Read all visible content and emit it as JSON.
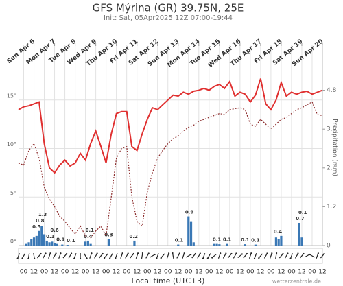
{
  "chart_data": {
    "type": "line",
    "title": "GFS Mýrina (GR) 39.75N, 25E",
    "subtitle": "Init: Sat, 05Apr2025 12Z 07:00-19:44",
    "x_label": "Local time (UTC+3)",
    "y2_label": "Precipitation (mm)",
    "source": "wetterzentrale.de",
    "xlim": [
      -6,
      348
    ],
    "ylim": [
      0,
      20
    ],
    "y2lim": [
      0,
      6
    ],
    "grid": true,
    "yticks": [
      {
        "value": 0,
        "label": "0°"
      },
      {
        "value": 5,
        "label": "5°"
      },
      {
        "value": 10,
        "label": "10°"
      },
      {
        "value": 15,
        "label": "15°"
      }
    ],
    "y2ticks": [
      0,
      1.2,
      2.4,
      3.6,
      4.8
    ],
    "xticks": [
      {
        "value": 0,
        "label": "00"
      },
      {
        "value": 12,
        "label": "12"
      },
      {
        "value": 24,
        "label": "00"
      },
      {
        "value": 36,
        "label": "12"
      },
      {
        "value": 48,
        "label": "00"
      },
      {
        "value": 60,
        "label": "12"
      },
      {
        "value": 72,
        "label": "00"
      },
      {
        "value": 84,
        "label": "12"
      },
      {
        "value": 96,
        "label": "00"
      },
      {
        "value": 108,
        "label": "12"
      },
      {
        "value": 120,
        "label": "00"
      },
      {
        "value": 132,
        "label": "12"
      },
      {
        "value": 144,
        "label": "00"
      },
      {
        "value": 156,
        "label": "12"
      },
      {
        "value": 168,
        "label": "00"
      },
      {
        "value": 180,
        "label": "12"
      },
      {
        "value": 192,
        "label": "00"
      },
      {
        "value": 204,
        "label": "12"
      },
      {
        "value": 216,
        "label": "00"
      },
      {
        "value": 228,
        "label": "12"
      },
      {
        "value": 240,
        "label": "00"
      },
      {
        "value": 252,
        "label": "12"
      },
      {
        "value": 264,
        "label": "00"
      },
      {
        "value": 276,
        "label": "12"
      },
      {
        "value": 288,
        "label": "00"
      },
      {
        "value": 300,
        "label": "12"
      },
      {
        "value": 312,
        "label": "00"
      },
      {
        "value": 324,
        "label": "12"
      },
      {
        "value": 336,
        "label": "00"
      },
      {
        "value": 348,
        "label": "12"
      }
    ],
    "top_ticks": [
      {
        "value": 12,
        "label": "Sun Apr 6"
      },
      {
        "value": 36,
        "label": "Mon Apr 7"
      },
      {
        "value": 60,
        "label": "Tue Apr 8"
      },
      {
        "value": 84,
        "label": "Wed Apr 9"
      },
      {
        "value": 108,
        "label": "Thu Apr 10"
      },
      {
        "value": 132,
        "label": "Fri Apr 11"
      },
      {
        "value": 156,
        "label": "Sat Apr 12"
      },
      {
        "value": 180,
        "label": "Sun Apr 13"
      },
      {
        "value": 204,
        "label": "Mon Apr 14"
      },
      {
        "value": 228,
        "label": "Tue Apr 15"
      },
      {
        "value": 252,
        "label": "Wed Apr 16"
      },
      {
        "value": 276,
        "label": "Thu Apr 17"
      },
      {
        "value": 300,
        "label": "Fri Apr 18"
      },
      {
        "value": 324,
        "label": "Sat Apr 19"
      },
      {
        "value": 348,
        "label": "Sun Apr 20"
      }
    ],
    "x": [
      -6,
      0,
      6,
      12,
      18,
      24,
      30,
      36,
      42,
      48,
      54,
      60,
      66,
      72,
      78,
      84,
      90,
      96,
      102,
      108,
      114,
      120,
      126,
      132,
      138,
      144,
      150,
      156,
      162,
      168,
      174,
      180,
      186,
      192,
      198,
      204,
      210,
      216,
      222,
      228,
      234,
      240,
      246,
      252,
      258,
      264,
      270,
      276,
      282,
      288,
      294,
      300,
      306,
      312,
      318,
      324,
      330,
      336,
      342,
      348
    ],
    "series": [
      {
        "color": "#e03030",
        "style": "solid",
        "values": [
          14.0,
          14.3,
          14.4,
          14.6,
          14.8,
          10.5,
          8.0,
          7.5,
          8.3,
          8.8,
          8.2,
          8.5,
          9.5,
          8.8,
          10.5,
          11.8,
          10.2,
          8.5,
          11.5,
          13.6,
          13.8,
          13.8,
          10.2,
          9.8,
          11.5,
          13.0,
          14.2,
          14.0,
          14.5,
          15.0,
          15.5,
          15.4,
          15.8,
          15.6,
          15.9,
          16.0,
          16.2,
          16.0,
          16.4,
          16.6,
          16.2,
          16.9,
          15.4,
          15.8,
          15.6,
          14.8,
          15.5,
          17.2,
          14.6,
          14.0,
          15.0,
          16.8,
          15.4,
          15.8,
          15.6,
          15.8,
          15.9,
          15.6,
          15.8,
          16.0
        ]
      },
      {
        "color": "#8b2a2a",
        "style": "dotted",
        "values": [
          8.5,
          8.3,
          9.8,
          10.5,
          9.0,
          6.0,
          4.8,
          4.0,
          3.0,
          2.5,
          1.8,
          1.2,
          2.0,
          1.0,
          0.8,
          1.5,
          2.0,
          1.0,
          5.0,
          9.0,
          10.0,
          10.2,
          5.0,
          2.5,
          2.0,
          5.5,
          7.5,
          9.0,
          9.8,
          10.5,
          11.0,
          11.3,
          11.8,
          12.2,
          12.4,
          12.8,
          13.0,
          13.2,
          13.4,
          13.6,
          13.5,
          14.0,
          14.1,
          14.2,
          14.0,
          12.5,
          12.3,
          13.0,
          12.5,
          12.0,
          12.5,
          13.0,
          13.2,
          13.6,
          14.0,
          14.2,
          14.5,
          14.8,
          13.5,
          13.4
        ]
      }
    ],
    "precip": {
      "color": "#3a78b5",
      "axis": "y2",
      "x": [
        3,
        6,
        9,
        12,
        15,
        18,
        21,
        24,
        27,
        30,
        33,
        36,
        39,
        45,
        51,
        72,
        75,
        78,
        99,
        129,
        180,
        192,
        195,
        198,
        222,
        225,
        228,
        237,
        258,
        270,
        294,
        297,
        300,
        321,
        324
      ],
      "values": [
        0.05,
        0.1,
        0.2,
        0.25,
        0.3,
        0.45,
        0.6,
        0.35,
        0.15,
        0.1,
        0.12,
        0.08,
        0.05,
        0.03,
        0.02,
        0.12,
        0.15,
        0.05,
        0.2,
        0.15,
        0.03,
        0.9,
        0.75,
        0.1,
        0.05,
        0.05,
        0.04,
        0.05,
        0.04,
        0.03,
        0.25,
        0.2,
        0.3,
        0.7,
        0.25
      ]
    },
    "precip_totals": {
      "x": [
        15,
        19,
        22,
        31,
        36,
        43,
        55,
        75,
        77,
        99,
        128,
        181,
        193,
        225,
        237,
        258,
        270,
        296,
        322,
        325
      ],
      "values": [
        0.5,
        0.8,
        1.3,
        0.1,
        0.6,
        0.1,
        0.1,
        0.4,
        0.1,
        0.3,
        0.2,
        0.1,
        0.9,
        0.1,
        0.1,
        0.1,
        0.1,
        0.4,
        0.7,
        0.1
      ]
    },
    "wind": {
      "direction": [
        200,
        210,
        190,
        170,
        40,
        30,
        20,
        30,
        20,
        40,
        30,
        200,
        180,
        150,
        20,
        30,
        40,
        220,
        210,
        200,
        20,
        30,
        40,
        20,
        10,
        30,
        60,
        200,
        220,
        20,
        350,
        30,
        20,
        60,
        40,
        30,
        200,
        210,
        230,
        20,
        30,
        40,
        30,
        50,
        40,
        20,
        200,
        220,
        30,
        20,
        10,
        40,
        30,
        200,
        30,
        40,
        60,
        300,
        20,
        40
      ]
    }
  }
}
